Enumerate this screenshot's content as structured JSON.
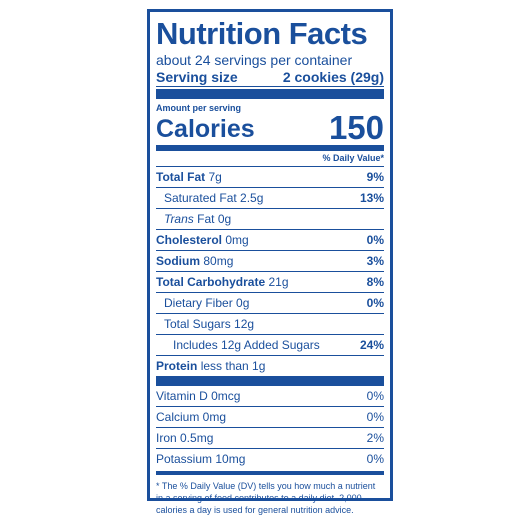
{
  "label": {
    "title": "Nutrition Facts",
    "servings_per_container": "about 24 servings per container",
    "serving_size_label": "Serving size",
    "serving_size_value": "2 cookies (29g)",
    "amount_per_serving": "Amount per serving",
    "calories_label": "Calories",
    "calories_value": "150",
    "daily_value_header": "% Daily Value*",
    "nutrients": {
      "total_fat": {
        "label": "Total Fat",
        "amount": "7g",
        "dv": "9%"
      },
      "saturated_fat": {
        "label": "Saturated Fat 2.5g",
        "dv": "13%"
      },
      "trans_fat": {
        "label_italic": "Trans",
        "label_rest": "Fat 0g"
      },
      "cholesterol": {
        "label": "Cholesterol",
        "amount": "0mg",
        "dv": "0%"
      },
      "sodium": {
        "label": "Sodium",
        "amount": "80mg",
        "dv": "3%"
      },
      "total_carbohydrate": {
        "label": "Total Carbohydrate",
        "amount": "21g",
        "dv": "8%"
      },
      "dietary_fiber": {
        "label": "Dietary Fiber 0g",
        "dv": "0%"
      },
      "total_sugars": {
        "label": "Total Sugars 12g"
      },
      "added_sugars": {
        "label": "Includes 12g Added Sugars",
        "dv": "24%"
      },
      "protein": {
        "label": "Protein",
        "amount": "less than 1g"
      }
    },
    "vitamins": [
      {
        "label": "Vitamin D 0mcg",
        "dv": "0%"
      },
      {
        "label": "Calcium 0mg",
        "dv": "0%"
      },
      {
        "label": "Iron 0.5mg",
        "dv": "2%"
      },
      {
        "label": "Potassium 10mg",
        "dv": "0%"
      }
    ],
    "footnote": "* The % Daily Value (DV) tells you how much a nutrient in a serving of food contributes to a daily diet. 2,000 calories a day is used for general nutrition advice.",
    "colors": {
      "ink": "#1a4f9c",
      "background": "#ffffff"
    }
  }
}
